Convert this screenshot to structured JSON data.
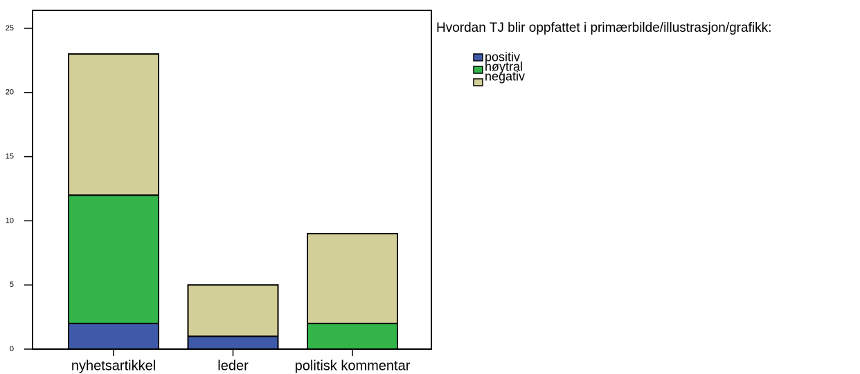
{
  "chart_data": {
    "type": "stacked_bar",
    "legend_title": "Hvordan TJ blir oppfattet i primærbilde/illustrasjon/grafikk:",
    "categories": [
      "nyhetsartikkel",
      "leder",
      "politisk kommentar"
    ],
    "series": [
      {
        "name": "positiv",
        "color": "#3f5aa8",
        "values": [
          2,
          1,
          0
        ]
      },
      {
        "name": "nøytral",
        "color": "#33b54a",
        "values": [
          10,
          0,
          2
        ]
      },
      {
        "name": "negativ",
        "color": "#d3cf98",
        "values": [
          11,
          4,
          7
        ]
      }
    ],
    "ylim": [
      0,
      26.4
    ],
    "yticks": [
      0,
      5,
      10,
      15,
      20,
      25
    ],
    "legend": "right"
  }
}
